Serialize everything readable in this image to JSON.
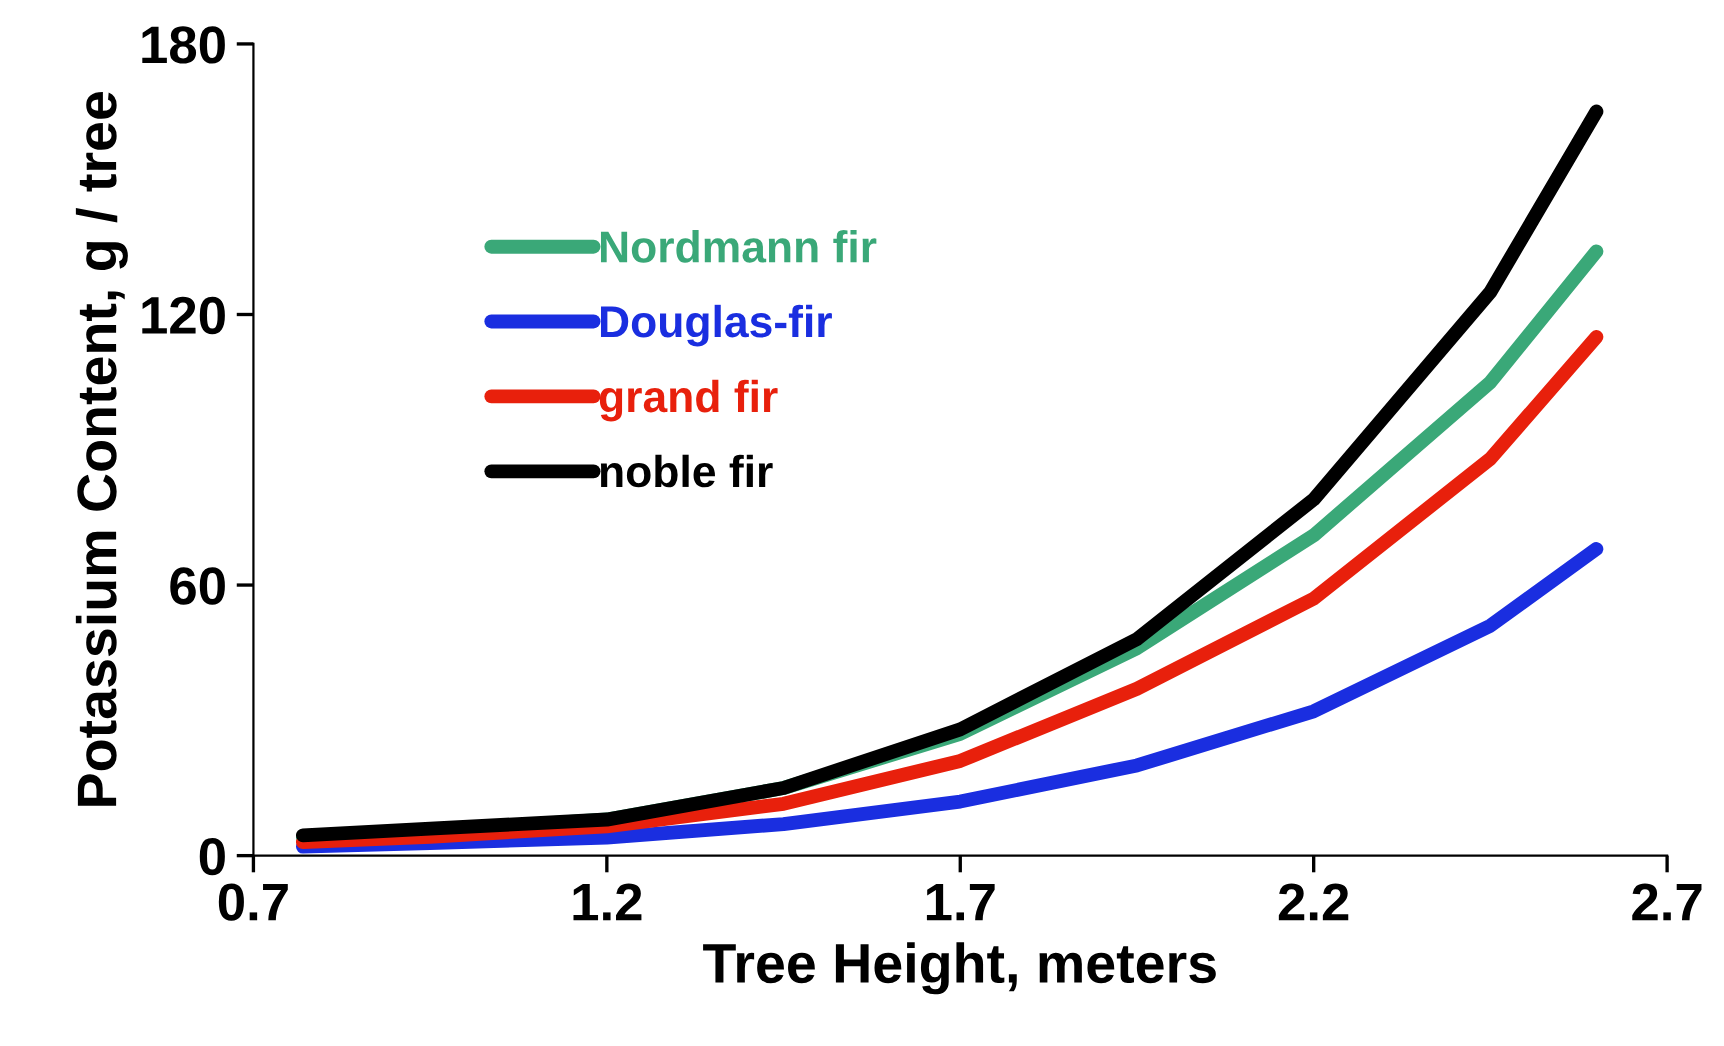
{
  "chart_data": {
    "type": "line",
    "xlabel": "Tree Height, meters",
    "ylabel": "Potassium Content, g / tree",
    "x": [
      0.77,
      0.95,
      1.2,
      1.45,
      1.7,
      1.95,
      2.2,
      2.45,
      2.6
    ],
    "series": [
      {
        "name": "Nordmann fir",
        "color": "#3aa878",
        "values": [
          4,
          5.5,
          8,
          15,
          27,
          46,
          71,
          105,
          134
        ]
      },
      {
        "name": "Douglas-fir",
        "color": "#1a2ee0",
        "values": [
          2,
          2.8,
          4,
          7,
          12,
          20,
          32,
          51,
          68
        ]
      },
      {
        "name": "grand fir",
        "color": "#e8200c",
        "values": [
          3,
          4.2,
          6.5,
          11.5,
          21,
          37,
          57,
          88,
          115
        ]
      },
      {
        "name": "noble fir",
        "color": "#000000",
        "values": [
          4.5,
          6,
          8,
          15,
          28,
          48,
          79,
          125,
          165
        ]
      }
    ],
    "xlim": [
      0.7,
      2.7
    ],
    "xticks": [
      0.7,
      1.2,
      1.7,
      2.2,
      2.7
    ],
    "ylim": [
      0,
      180
    ],
    "yticks": [
      0,
      60,
      120,
      180
    ],
    "grid": false,
    "legend": "top left",
    "marker": "none",
    "line_style": "solid"
  }
}
